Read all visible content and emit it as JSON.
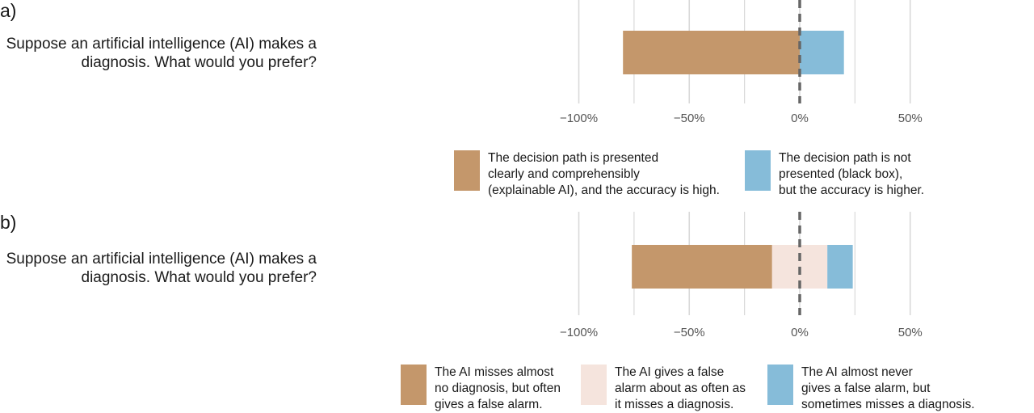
{
  "colors": {
    "brown": "#c4976b",
    "pink": "#f5e4dd",
    "blue": "#86bcd9",
    "grid": "#d9d9d9",
    "zero_line": "#666666",
    "tick_text": "#555555"
  },
  "chart_data": [
    {
      "type": "bar",
      "orientation": "horizontal",
      "stacked": true,
      "panel_label": "a)",
      "question": "Suppose an artificial intelligence (AI) makes a diagnosis. What would you prefer?",
      "xlim": [
        -100,
        50
      ],
      "xticks": [
        -100,
        -50,
        0,
        50
      ],
      "tick_labels": [
        "−100%",
        "−50%",
        "0%",
        "50%"
      ],
      "grid": true,
      "zero_line": "dashed",
      "legend_position": "bottom",
      "series": [
        {
          "name": "The decision path is presented\n clearly and comprehensibly\n(explainable AI), and the accuracy is high.",
          "start": -80,
          "end": 0,
          "color": "brown"
        },
        {
          "name": "The decision path is not\npresented (black box),\nbut the accuracy is higher.",
          "start": 0,
          "end": 20,
          "color": "blue"
        }
      ]
    },
    {
      "type": "bar",
      "orientation": "horizontal",
      "stacked": true,
      "panel_label": "b)",
      "question": "Suppose an artificial intelligence (AI) makes a diagnosis. What would you prefer?",
      "xlim": [
        -100,
        50
      ],
      "xticks": [
        -100,
        -50,
        0,
        50
      ],
      "tick_labels": [
        "−100%",
        "−50%",
        "0%",
        "50%"
      ],
      "grid": true,
      "zero_line": "dashed",
      "legend_position": "bottom",
      "series": [
        {
          "name": "The AI misses almost\nno diagnosis, but often\ngives a false alarm.",
          "start": -76,
          "end": -12.5,
          "color": "brown"
        },
        {
          "name": "The AI gives a false\nalarm about as often as\nit misses a diagnosis.",
          "start": -12.5,
          "end": 12.5,
          "color": "pink"
        },
        {
          "name": "The AI almost never\ngives a false alarm, but\nsometimes misses a diagnosis.",
          "start": 12.5,
          "end": 24,
          "color": "blue"
        }
      ]
    }
  ]
}
